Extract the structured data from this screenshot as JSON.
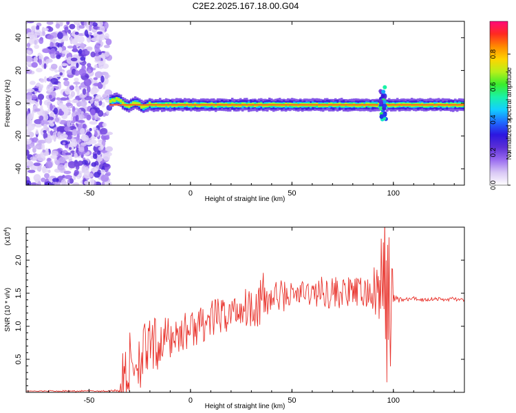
{
  "title": "C2E2.2025.167.18.00.G04",
  "colors": {
    "line": "#e8312a",
    "axis": "#000000",
    "colormap": [
      "#ffffff",
      "#d9c8f5",
      "#9a6cf0",
      "#5b2fd6",
      "#2c16e0",
      "#1e6cff",
      "#12d0ff",
      "#19f2a8",
      "#39ec2d",
      "#b7f01a",
      "#ffd400",
      "#ff8a00",
      "#ff2a20",
      "#ff0a7a"
    ]
  },
  "chart_data": [
    {
      "type": "heatmap",
      "xlabel": "Height of straight line (km)",
      "ylabel": "Frequency (Hz)",
      "xlim": [
        -81,
        135
      ],
      "ylim": [
        -50,
        50
      ],
      "xticks": [
        -50,
        0,
        50,
        100
      ],
      "yticks": [
        -40,
        -20,
        0,
        20,
        40
      ],
      "colorbar": {
        "label": "Normalized spectral amplitude",
        "range": [
          0,
          1
        ],
        "ticks": [
          "0.0",
          "0.2",
          "0.4",
          "0.6",
          "0.8"
        ]
      },
      "regions": [
        {
          "from_x": -81,
          "to_x": -40,
          "kind": "noise",
          "amplitude": 0.15
        },
        {
          "from_x": -40,
          "to_x": 135,
          "kind": "tone",
          "frequency": -1,
          "amplitude": 0.95
        },
        {
          "at_x": 95,
          "kind": "burst",
          "frequency_spread": [
            -10,
            10
          ]
        }
      ]
    },
    {
      "type": "line",
      "xlabel": "Height of straight line (km)",
      "ylabel": "SNR (10 * v/v)",
      "yscale_label": "(x10",
      "yscale_exp": "4",
      "xlim": [
        -81,
        135
      ],
      "ylim": [
        0,
        2.5
      ],
      "xticks": [
        -50,
        0,
        50,
        100
      ],
      "yticks": [
        "0.5",
        "1.0",
        "1.5",
        "2.0"
      ],
      "ytick_values": [
        0.5,
        1.0,
        1.5,
        2.0
      ],
      "series": [
        {
          "x": [
            -81,
            -70,
            -60,
            -50,
            -45,
            -40,
            -38,
            -36,
            -35,
            -34,
            -33,
            -32,
            -30,
            -25,
            -20,
            -15,
            -10,
            -5,
            0,
            5,
            10,
            15,
            20,
            25,
            30,
            35,
            40,
            45,
            50,
            55,
            60,
            65,
            70,
            75,
            80,
            85,
            90,
            93,
            95,
            97,
            99,
            100,
            105,
            110,
            115,
            120,
            125,
            130,
            135
          ],
          "values": [
            0.02,
            0.02,
            0.02,
            0.02,
            0.02,
            0.02,
            0.03,
            0.03,
            0.05,
            0.1,
            0.2,
            0.3,
            0.4,
            0.55,
            0.65,
            0.75,
            0.82,
            0.9,
            0.95,
            1.02,
            1.1,
            1.15,
            1.2,
            1.28,
            1.32,
            1.38,
            1.42,
            1.46,
            1.48,
            1.5,
            1.5,
            1.52,
            1.52,
            1.5,
            1.52,
            1.5,
            1.5,
            1.45,
            1.45,
            1.45,
            1.4,
            1.42,
            1.4,
            1.42,
            1.4,
            1.42,
            1.4,
            1.42,
            1.38
          ],
          "noise_amplitude": [
            0.0,
            0.01,
            0.01,
            0.01,
            0.01,
            0.01,
            0.02,
            0.02,
            0.1,
            0.35,
            0.5,
            0.55,
            0.55,
            0.5,
            0.45,
            0.4,
            0.35,
            0.3,
            0.3,
            0.28,
            0.3,
            0.28,
            0.3,
            0.3,
            0.32,
            0.45,
            0.35,
            0.25,
            0.2,
            0.2,
            0.2,
            0.25,
            0.25,
            0.25,
            0.22,
            0.25,
            0.3,
            0.9,
            1.3,
            1.3,
            1.2,
            0.08,
            0.03,
            0.03,
            0.03,
            0.03,
            0.03,
            0.03,
            0.03
          ]
        }
      ]
    }
  ]
}
